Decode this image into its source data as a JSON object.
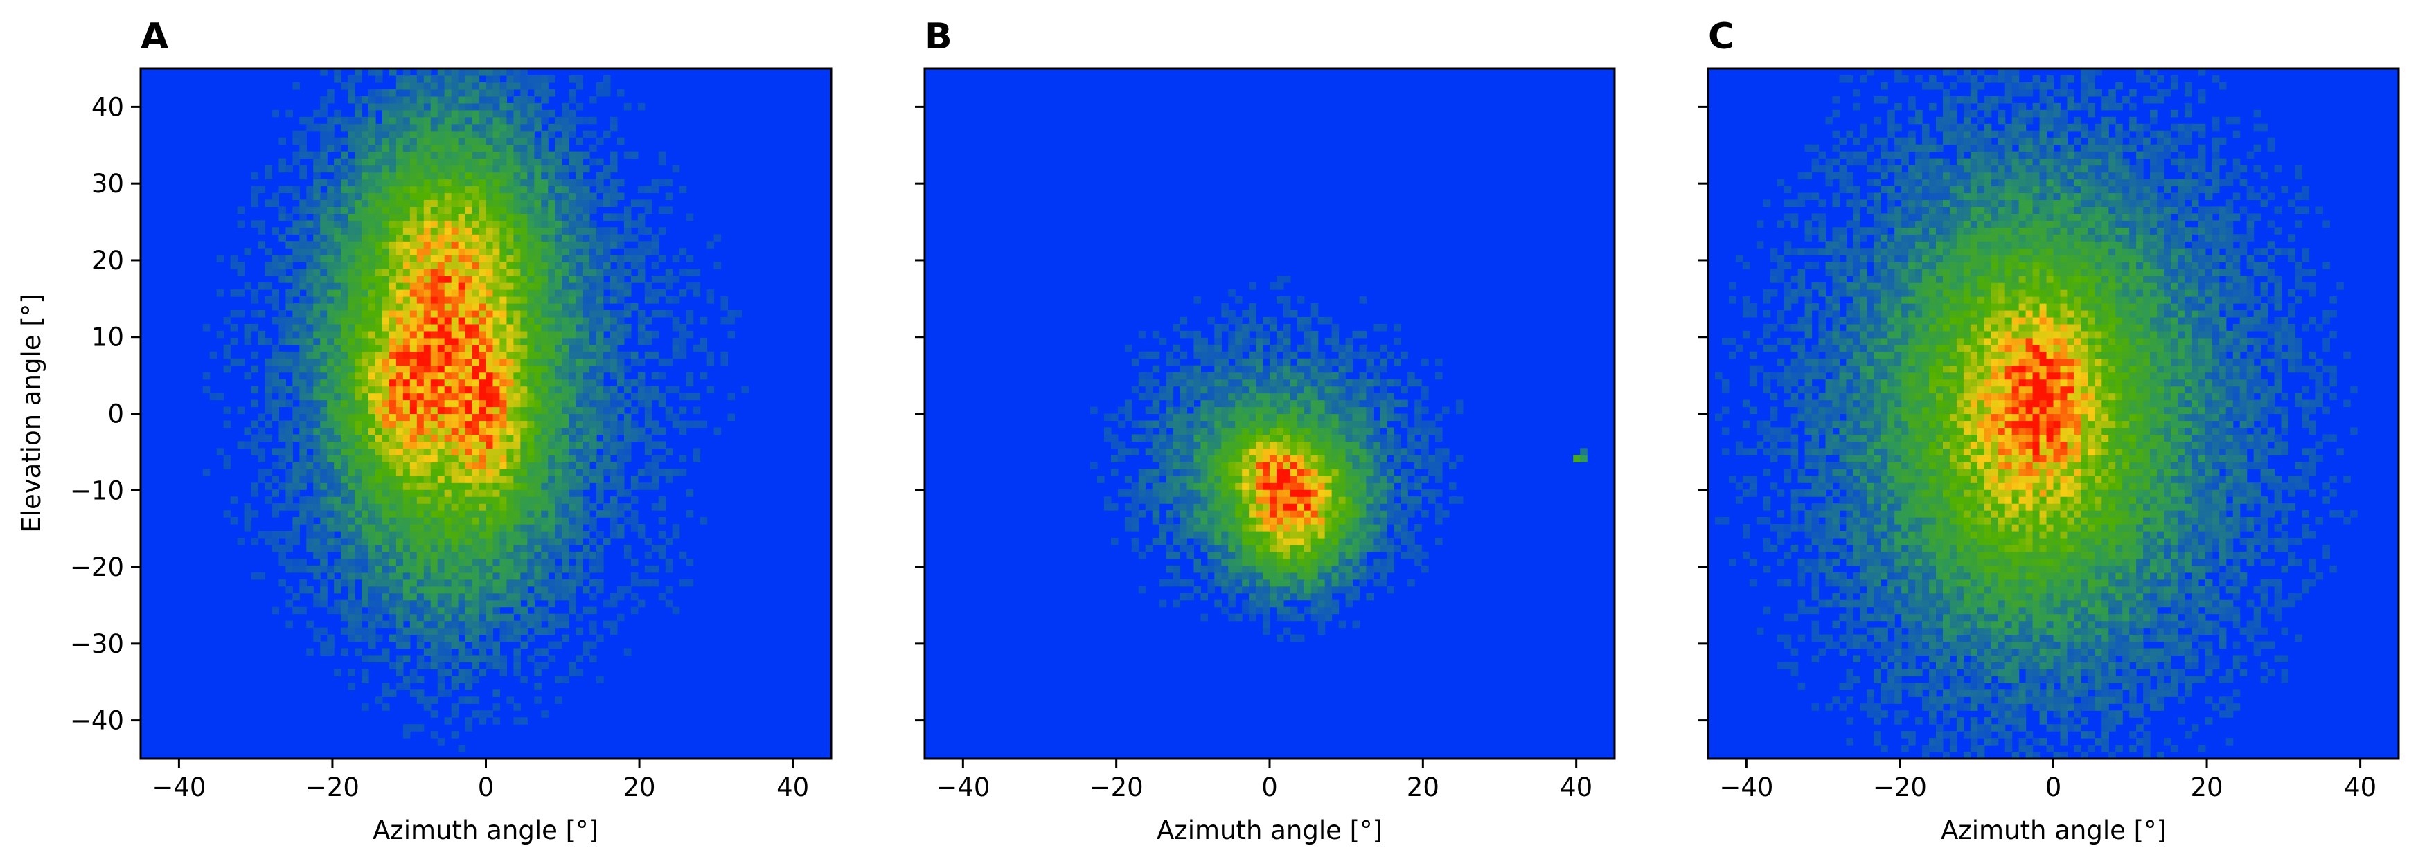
{
  "chart_data": [
    {
      "type": "heatmap",
      "panel_label": "A",
      "xlabel": "Azimuth angle [°]",
      "ylabel": "Elevation angle [°]",
      "xlim": [
        -45,
        45
      ],
      "ylim": [
        -45,
        45
      ],
      "xticks": [
        -40,
        -20,
        0,
        20,
        40
      ],
      "yticks": [
        -40,
        -30,
        -20,
        -10,
        0,
        10,
        20,
        30,
        40
      ],
      "show_yticklabels": true,
      "grid": false,
      "blobs": [
        {
          "cx": -5,
          "cy": 8,
          "sx": 8.5,
          "sy": 17,
          "amp": 0.72
        },
        {
          "cx": -12,
          "cy": 2,
          "sx": 3.5,
          "sy": 6,
          "amp": 0.25
        },
        {
          "cx": 1,
          "cy": -2,
          "sx": 3,
          "sy": 7,
          "amp": 0.25
        },
        {
          "cx": -5,
          "cy": 22,
          "sx": 6,
          "sy": 6,
          "amp": 0.15
        },
        {
          "cx": -2,
          "cy": 5,
          "sx": 22,
          "sy": 28,
          "amp": 0.12
        }
      ]
    },
    {
      "type": "heatmap",
      "panel_label": "B",
      "xlabel": "Azimuth angle [°]",
      "ylabel": "",
      "xlim": [
        -45,
        45
      ],
      "ylim": [
        -45,
        45
      ],
      "xticks": [
        -40,
        -20,
        0,
        20,
        40
      ],
      "yticks": [
        -40,
        -30,
        -20,
        -10,
        0,
        10,
        20,
        30,
        40
      ],
      "show_yticklabels": false,
      "grid": false,
      "blobs": [
        {
          "cx": 3,
          "cy": -12,
          "sx": 5,
          "sy": 5.5,
          "amp": 0.72
        },
        {
          "cx": -1,
          "cy": -6,
          "sx": 4,
          "sy": 3,
          "amp": 0.25
        },
        {
          "cx": 1,
          "cy": -6,
          "sx": 13,
          "sy": 12,
          "amp": 0.22
        },
        {
          "cx": 40.5,
          "cy": -5.7,
          "sx": 0.5,
          "sy": 0.5,
          "amp": 0.5
        }
      ]
    },
    {
      "type": "heatmap",
      "panel_label": "C",
      "xlabel": "Azimuth angle [°]",
      "ylabel": "",
      "xlim": [
        -45,
        45
      ],
      "ylim": [
        -45,
        45
      ],
      "xticks": [
        -40,
        -20,
        0,
        20,
        40
      ],
      "yticks": [
        -40,
        -30,
        -20,
        -10,
        0,
        10,
        20,
        30,
        40
      ],
      "show_yticklabels": false,
      "grid": false,
      "blobs": [
        {
          "cx": -3,
          "cy": 0,
          "sx": 9.5,
          "sy": 14,
          "amp": 0.6
        },
        {
          "cx": -2,
          "cy": 0,
          "sx": 22,
          "sy": 28,
          "amp": 0.22
        },
        {
          "cx": -1,
          "cy": 4,
          "sx": 3,
          "sy": 6,
          "amp": 0.2
        }
      ]
    }
  ],
  "colormap": [
    "#0037f6",
    "#2f9a54",
    "#52b000",
    "#f7cd14",
    "#ff1400"
  ]
}
